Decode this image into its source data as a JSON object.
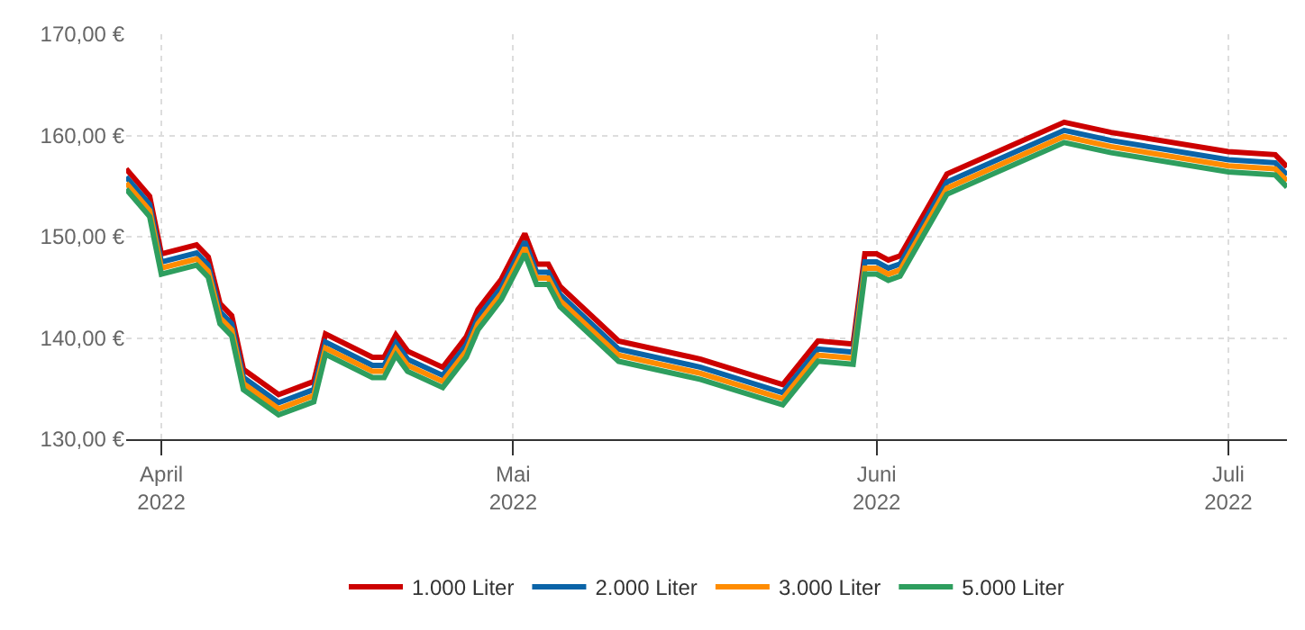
{
  "chart_data": {
    "type": "line",
    "x": [
      "2022-03-29",
      "2022-03-31",
      "2022-04-01",
      "2022-04-04",
      "2022-04-05",
      "2022-04-06",
      "2022-04-07",
      "2022-04-08",
      "2022-04-11",
      "2022-04-14",
      "2022-04-15",
      "2022-04-19",
      "2022-04-20",
      "2022-04-21",
      "2022-04-22",
      "2022-04-25",
      "2022-04-27",
      "2022-04-28",
      "2022-04-29",
      "2022-04-30",
      "2022-05-02",
      "2022-05-03",
      "2022-05-04",
      "2022-05-05",
      "2022-05-10",
      "2022-05-17",
      "2022-05-24",
      "2022-05-27",
      "2022-05-30",
      "2022-05-31",
      "2022-06-01",
      "2022-06-02",
      "2022-06-03",
      "2022-06-07",
      "2022-06-17",
      "2022-06-21",
      "2022-07-01",
      "2022-07-05",
      "2022-07-06"
    ],
    "series": [
      {
        "name": "1.000 Liter",
        "color": "#cc0000",
        "values": [
          156.7,
          154.0,
          148.3,
          149.2,
          148.0,
          143.4,
          142.2,
          136.9,
          134.4,
          135.7,
          140.4,
          138.1,
          138.1,
          140.3,
          138.7,
          137.1,
          140.1,
          142.8,
          144.3,
          145.8,
          150.3,
          147.3,
          147.3,
          145.1,
          139.7,
          137.9,
          135.4,
          139.7,
          139.4,
          148.3,
          148.3,
          147.7,
          148.1,
          156.2,
          161.3,
          160.3,
          158.4,
          158.1,
          156.9
        ]
      },
      {
        "name": "2.000 Liter",
        "color": "#0a64a8",
        "values": [
          155.9,
          153.2,
          147.5,
          148.4,
          147.2,
          142.6,
          141.4,
          136.1,
          133.6,
          134.9,
          139.6,
          137.3,
          137.3,
          139.5,
          137.9,
          136.3,
          139.3,
          142.0,
          143.5,
          145.0,
          149.5,
          146.5,
          146.5,
          144.3,
          138.9,
          137.1,
          134.6,
          138.9,
          138.6,
          147.5,
          147.5,
          146.9,
          147.3,
          155.4,
          160.5,
          159.5,
          157.6,
          157.3,
          156.1
        ]
      },
      {
        "name": "3.000 Liter",
        "color": "#ff8c00",
        "values": [
          155.3,
          152.6,
          146.9,
          147.8,
          146.6,
          142.0,
          140.8,
          135.5,
          133.0,
          134.3,
          139.0,
          136.7,
          136.7,
          138.9,
          137.3,
          135.7,
          138.7,
          141.4,
          142.9,
          144.4,
          148.9,
          145.9,
          145.9,
          143.7,
          138.3,
          136.5,
          134.0,
          138.3,
          138.0,
          146.9,
          146.9,
          146.3,
          146.7,
          154.8,
          159.9,
          158.9,
          157.0,
          156.7,
          155.5
        ]
      },
      {
        "name": "5.000 Liter",
        "color": "#2e9e5e",
        "values": [
          154.7,
          152.0,
          146.3,
          147.2,
          146.0,
          141.4,
          140.2,
          134.9,
          132.4,
          133.7,
          138.4,
          136.1,
          136.1,
          138.3,
          136.7,
          135.1,
          138.1,
          140.8,
          142.3,
          143.8,
          148.3,
          145.3,
          145.3,
          143.1,
          137.7,
          135.9,
          133.4,
          137.7,
          137.4,
          146.3,
          146.3,
          145.7,
          146.1,
          154.2,
          159.3,
          158.3,
          156.4,
          156.1,
          154.9
        ]
      }
    ],
    "xlim": [
      "2022-03-29",
      "2022-07-06"
    ],
    "xticks": [
      {
        "value": "2022-04-01",
        "label": "April\n2022"
      },
      {
        "value": "2022-05-01",
        "label": "Mai\n2022"
      },
      {
        "value": "2022-06-01",
        "label": "Juni\n2022"
      },
      {
        "value": "2022-07-01",
        "label": "Juli\n2022"
      }
    ],
    "ylim": [
      130,
      170
    ],
    "yticks": [
      {
        "value": 130,
        "label": "130,00 €"
      },
      {
        "value": 140,
        "label": "140,00 €"
      },
      {
        "value": 150,
        "label": "150,00 €"
      },
      {
        "value": 160,
        "label": "160,00 €"
      },
      {
        "value": 170,
        "label": "170,00 €"
      }
    ],
    "grid": true,
    "legend": "bottom",
    "marker": "none",
    "line_style": "solid"
  }
}
